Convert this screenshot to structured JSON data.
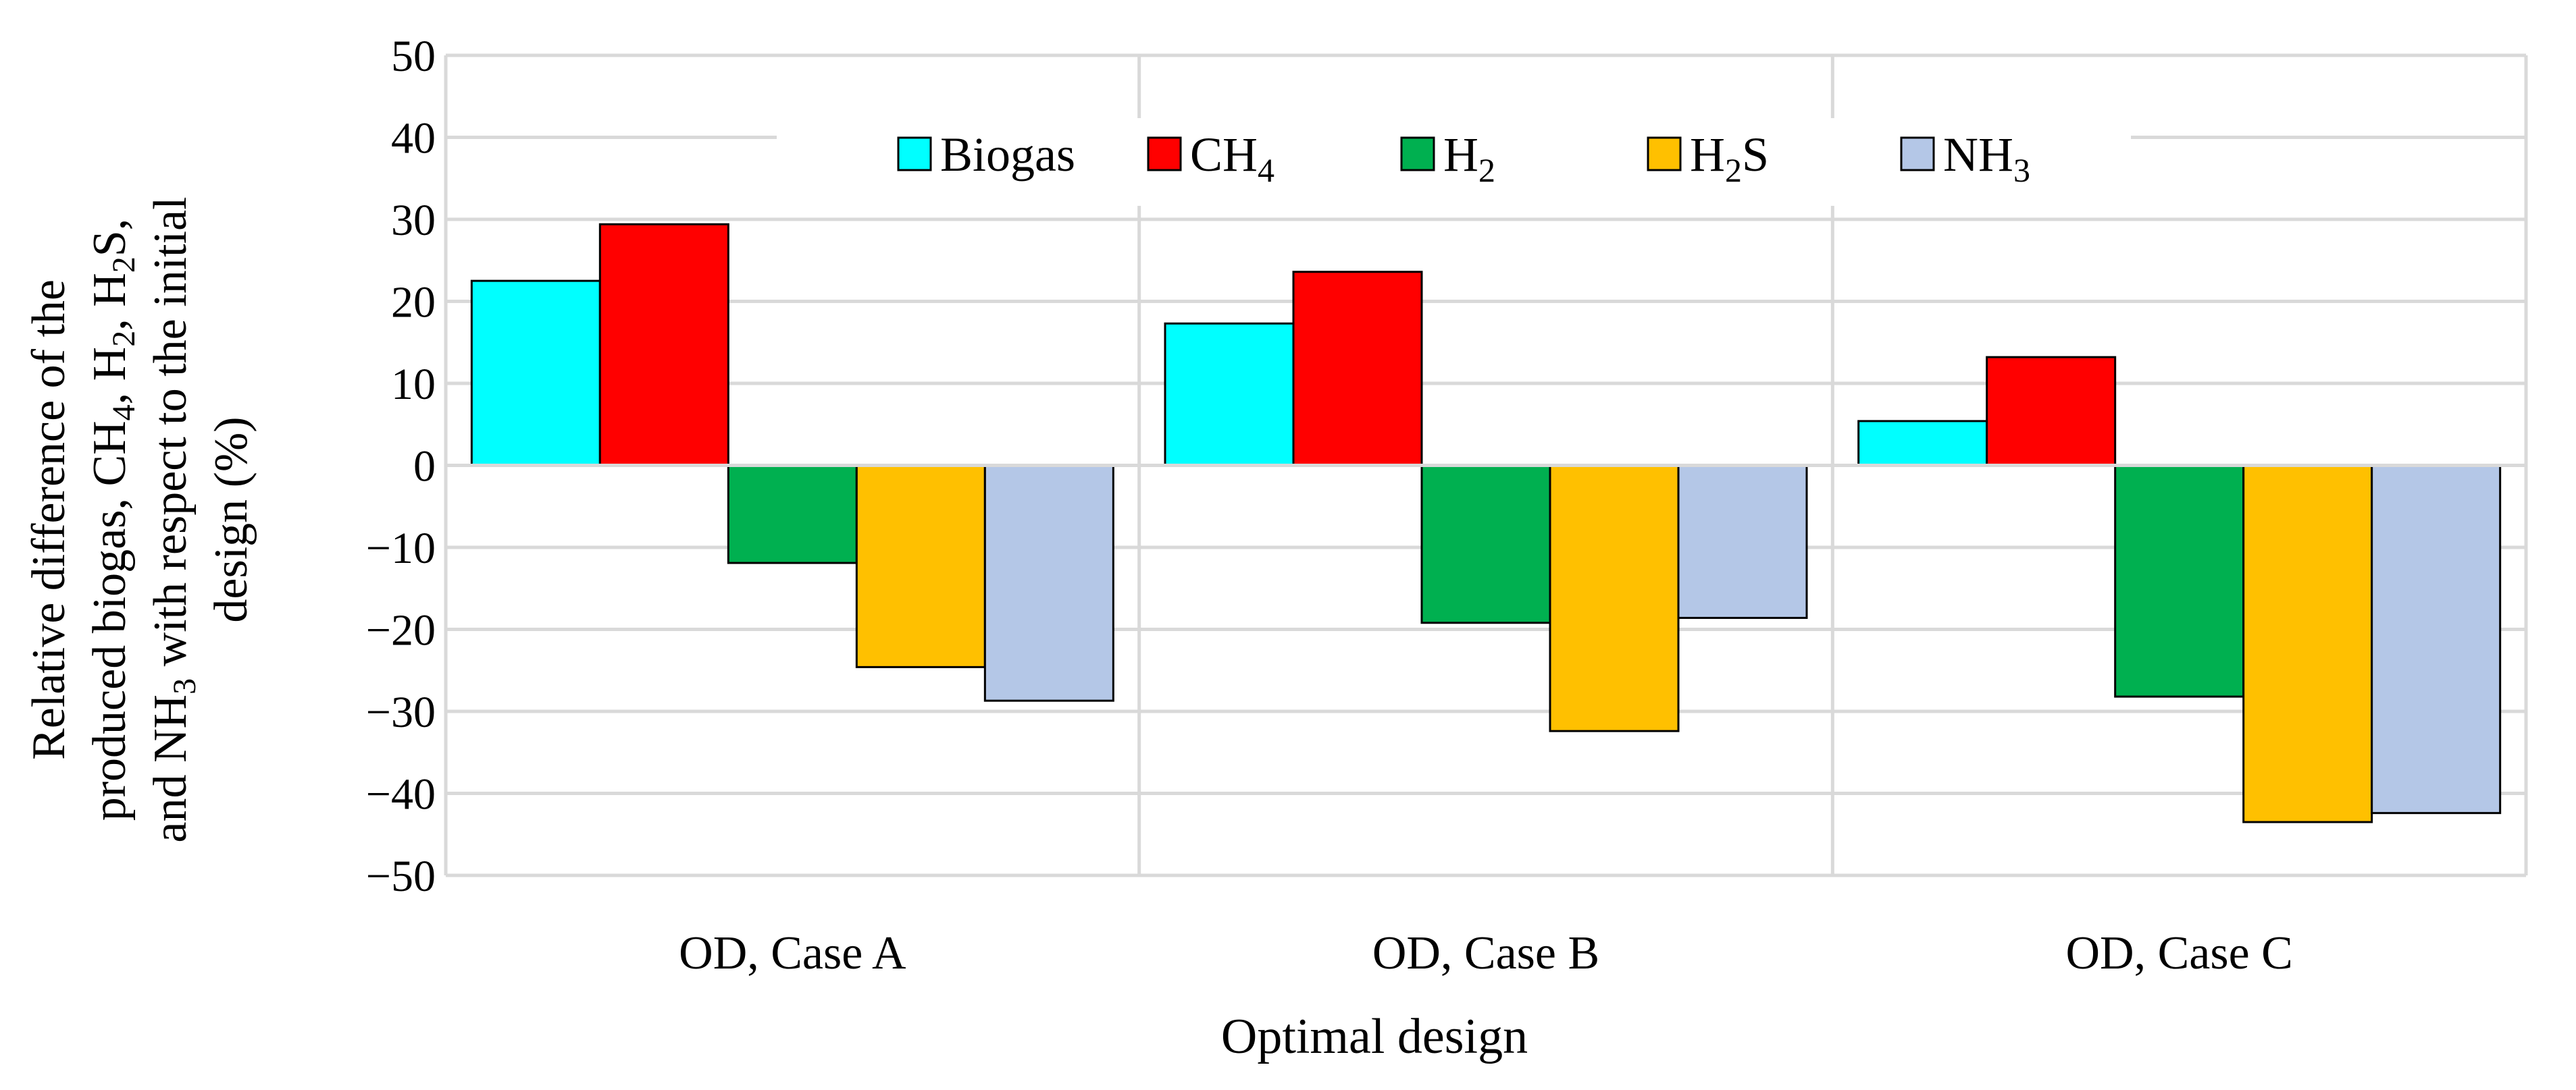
{
  "chart_data": {
    "type": "bar",
    "title": "",
    "xlabel": "Optimal design",
    "ylabel_lines": [
      "Relative difference of the",
      "produced biogas, CH4, H2, H2S,",
      "and NH3 with respect to the initial",
      "design (%)"
    ],
    "ylim": [
      -50,
      50
    ],
    "yticks": [
      50,
      40,
      30,
      20,
      10,
      0,
      -10,
      -20,
      -30,
      -40,
      -50
    ],
    "ytick_labels": [
      "50",
      "40",
      "30",
      "20",
      "10",
      "0",
      "−10",
      "−20",
      "−30",
      "−40",
      "−50"
    ],
    "grid": true,
    "legend_position": "top",
    "categories": [
      "OD, Case A",
      "OD, Case B",
      "OD, Case C"
    ],
    "series": [
      {
        "name": "Biogas",
        "label_main": "Biogas",
        "label_sub": "",
        "label_tail": "",
        "color": "#00FFFF",
        "values": [
          22.5,
          17.3,
          5.4
        ]
      },
      {
        "name": "CH4",
        "label_main": "CH",
        "label_sub": "4",
        "label_tail": "",
        "color": "#FF0000",
        "values": [
          29.4,
          23.6,
          13.2
        ]
      },
      {
        "name": "H2",
        "label_main": "H",
        "label_sub": "2",
        "label_tail": "",
        "color": "#00B050",
        "values": [
          -11.9,
          -19.2,
          -28.2
        ]
      },
      {
        "name": "H2S",
        "label_main": "H",
        "label_sub": "2",
        "label_tail": "S",
        "color": "#FFC000",
        "values": [
          -24.6,
          -32.4,
          -43.5
        ]
      },
      {
        "name": "NH3",
        "label_main": "NH",
        "label_sub": "3",
        "label_tail": "",
        "color": "#B4C7E7",
        "values": [
          -28.7,
          -18.6,
          -42.4
        ]
      }
    ]
  }
}
